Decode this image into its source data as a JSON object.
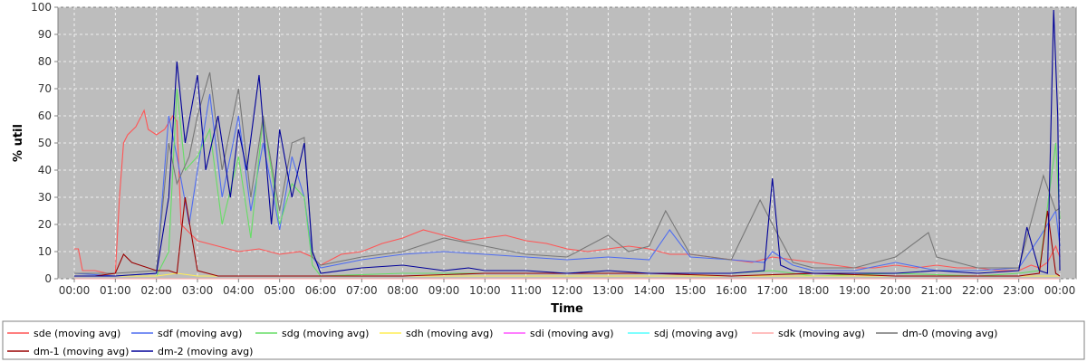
{
  "chart_data": {
    "type": "line",
    "title": "",
    "xlabel": "Time",
    "ylabel": "% util",
    "ylim": [
      0,
      100
    ],
    "yticks": [
      0,
      10,
      20,
      30,
      40,
      50,
      60,
      70,
      80,
      90,
      100
    ],
    "xlim": [
      0,
      24
    ],
    "xticks": [
      "00:00",
      "01:00",
      "02:00",
      "03:00",
      "04:00",
      "05:00",
      "06:00",
      "07:00",
      "08:00",
      "09:00",
      "10:00",
      "11:00",
      "12:00",
      "13:00",
      "14:00",
      "15:00",
      "16:00",
      "17:00",
      "18:00",
      "19:00",
      "20:00",
      "21:00",
      "22:00",
      "23:00",
      "00:00"
    ],
    "grid": true,
    "legend_position": "bottom",
    "series": [
      {
        "name": "sde (moving avg)",
        "color": "#ff5555",
        "x": [
          0.0,
          0.1,
          0.2,
          0.5,
          0.8,
          1.0,
          1.1,
          1.2,
          1.3,
          1.5,
          1.7,
          1.8,
          2.0,
          2.2,
          2.4,
          2.5,
          2.6,
          2.8,
          3.0,
          3.5,
          4.0,
          4.5,
          5.0,
          5.5,
          5.8,
          6.0,
          6.5,
          7.0,
          7.5,
          8.0,
          8.5,
          9.0,
          9.5,
          10.0,
          10.5,
          11.0,
          11.5,
          12.0,
          12.5,
          13.0,
          13.5,
          14.0,
          14.5,
          15.0,
          15.5,
          16.0,
          16.5,
          17.0,
          17.5,
          18.0,
          18.5,
          19.0,
          19.5,
          20.0,
          20.5,
          21.0,
          21.5,
          22.0,
          22.5,
          23.0,
          23.3,
          23.5,
          23.7,
          23.9,
          24.0
        ],
        "y": [
          11,
          11,
          3,
          3,
          2,
          2,
          30,
          50,
          53,
          56,
          62,
          55,
          53,
          55,
          60,
          58,
          20,
          17,
          14,
          12,
          10,
          11,
          9,
          10,
          8,
          5,
          9,
          10,
          13,
          15,
          18,
          16,
          14,
          15,
          16,
          14,
          13,
          11,
          10,
          11,
          12,
          11,
          9,
          9,
          8,
          7,
          6,
          8,
          7,
          6,
          5,
          4,
          4,
          5,
          4,
          5,
          4,
          4,
          3,
          3,
          5,
          4,
          6,
          12,
          8
        ]
      },
      {
        "name": "sdf (moving avg)",
        "color": "#4f6df0",
        "x": [
          0.0,
          1.0,
          2.0,
          2.3,
          2.5,
          2.8,
          3.0,
          3.3,
          3.6,
          4.0,
          4.3,
          4.6,
          5.0,
          5.3,
          5.6,
          5.8,
          6.0,
          7.0,
          8.0,
          9.0,
          10.0,
          11.0,
          12.0,
          13.0,
          14.0,
          14.5,
          15.0,
          16.0,
          16.8,
          17.0,
          17.5,
          18.0,
          19.0,
          20.0,
          21.0,
          22.0,
          23.0,
          23.5,
          23.9,
          24.0
        ],
        "y": [
          2,
          1,
          2,
          60,
          45,
          20,
          40,
          68,
          30,
          60,
          25,
          50,
          18,
          45,
          30,
          8,
          4,
          7,
          9,
          10,
          9,
          8,
          7,
          8,
          7,
          18,
          8,
          7,
          6,
          10,
          5,
          3,
          3,
          6,
          3,
          3,
          4,
          15,
          25,
          12
        ]
      },
      {
        "name": "sdg (moving avg)",
        "color": "#66dd66",
        "x": [
          0.0,
          1.0,
          2.0,
          2.3,
          2.5,
          2.7,
          3.0,
          3.3,
          3.6,
          4.0,
          4.3,
          4.6,
          5.0,
          5.3,
          5.6,
          5.8,
          6.0,
          8.0,
          10.0,
          12.0,
          14.0,
          16.0,
          17.0,
          17.5,
          18.0,
          20.0,
          22.0,
          23.0,
          23.5,
          23.9,
          24.0
        ],
        "y": [
          1,
          1,
          1,
          10,
          70,
          40,
          45,
          55,
          20,
          45,
          15,
          60,
          20,
          35,
          30,
          5,
          1,
          2,
          2,
          2,
          2,
          2,
          3,
          2,
          1,
          2,
          1,
          2,
          3,
          50,
          22
        ]
      },
      {
        "name": "sdh (moving avg)",
        "color": "#ffee55",
        "x": [
          0.0,
          2.0,
          2.5,
          3.0,
          3.5,
          4.0,
          5.0,
          6.0,
          9.0,
          12.0,
          15.0,
          18.0,
          21.0,
          24.0
        ],
        "y": [
          1,
          1,
          2,
          1,
          1,
          1,
          1,
          1,
          1,
          1,
          1,
          1,
          1,
          1
        ]
      },
      {
        "name": "sdi (moving avg)",
        "color": "#ff55ff",
        "x": [
          0.0,
          6.0,
          12.0,
          18.0,
          24.0
        ],
        "y": [
          0,
          0,
          0,
          0,
          0
        ]
      },
      {
        "name": "sdj (moving avg)",
        "color": "#55ffff",
        "x": [
          0.0,
          6.0,
          12.0,
          18.0,
          24.0
        ],
        "y": [
          0,
          0,
          0,
          0,
          0
        ]
      },
      {
        "name": "sdk (moving avg)",
        "color": "#ffaaaa",
        "x": [
          0.0,
          6.0,
          12.0,
          18.0,
          24.0
        ],
        "y": [
          0,
          0,
          0,
          0,
          0
        ]
      },
      {
        "name": "dm-0 (moving avg)",
        "color": "#777777",
        "x": [
          0.0,
          1.0,
          2.0,
          2.3,
          2.5,
          2.8,
          3.0,
          3.3,
          3.6,
          4.0,
          4.3,
          4.6,
          5.0,
          5.3,
          5.6,
          5.8,
          6.0,
          7.0,
          8.0,
          9.0,
          10.0,
          11.0,
          12.0,
          13.0,
          13.5,
          14.0,
          14.4,
          15.0,
          16.0,
          16.7,
          17.0,
          17.5,
          18.0,
          19.0,
          20.0,
          20.8,
          21.0,
          22.0,
          23.0,
          23.6,
          23.9,
          24.0
        ],
        "y": [
          2,
          2,
          3,
          50,
          35,
          45,
          60,
          76,
          40,
          70,
          30,
          60,
          25,
          50,
          52,
          8,
          5,
          8,
          10,
          15,
          12,
          9,
          8,
          16,
          10,
          12,
          25,
          9,
          7,
          29,
          20,
          6,
          4,
          4,
          8,
          17,
          8,
          4,
          4,
          38,
          25,
          26
        ]
      },
      {
        "name": "dm-1 (moving avg)",
        "color": "#990000",
        "x": [
          0.0,
          0.5,
          1.0,
          1.2,
          1.4,
          1.6,
          2.0,
          2.3,
          2.5,
          2.7,
          3.0,
          3.5,
          4.0,
          6.0,
          8.0,
          10.0,
          12.0,
          14.0,
          16.0,
          18.0,
          20.0,
          22.0,
          23.0,
          23.5,
          23.7,
          23.9,
          24.0
        ],
        "y": [
          1,
          1,
          2,
          9,
          6,
          5,
          3,
          3,
          2,
          30,
          3,
          1,
          1,
          1,
          1,
          2,
          2,
          2,
          1,
          2,
          1,
          1,
          1,
          2,
          25,
          2,
          1
        ]
      },
      {
        "name": "dm-2 (moving avg)",
        "color": "#000099",
        "x": [
          0.0,
          1.0,
          2.0,
          2.3,
          2.5,
          2.7,
          3.0,
          3.2,
          3.5,
          3.8,
          4.0,
          4.2,
          4.5,
          4.8,
          5.0,
          5.3,
          5.6,
          5.8,
          6.0,
          7.0,
          8.0,
          9.0,
          9.6,
          10.0,
          11.0,
          12.0,
          13.0,
          14.0,
          15.0,
          16.0,
          16.8,
          17.0,
          17.2,
          17.5,
          18.0,
          19.0,
          20.0,
          21.0,
          22.0,
          23.0,
          23.2,
          23.5,
          23.7,
          23.85,
          23.95,
          24.0
        ],
        "y": [
          1,
          1,
          2,
          30,
          80,
          50,
          75,
          40,
          60,
          30,
          55,
          40,
          75,
          20,
          55,
          30,
          50,
          10,
          2,
          4,
          5,
          3,
          4,
          3,
          3,
          2,
          3,
          2,
          2,
          2,
          3,
          37,
          5,
          3,
          2,
          2,
          2,
          3,
          2,
          3,
          19,
          3,
          2,
          99,
          60,
          3
        ]
      }
    ]
  }
}
